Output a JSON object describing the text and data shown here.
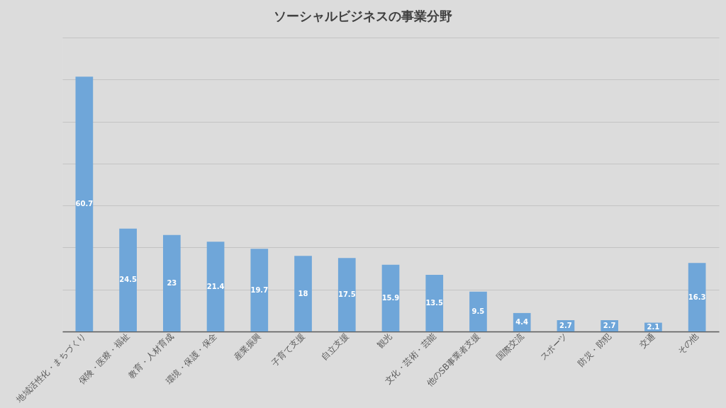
{
  "chart_data": {
    "type": "bar",
    "title": "ソーシャルビジネスの事業分野",
    "categories": [
      "地域活性化・まちづくり",
      "保険・医療・福祉",
      "教育・人材育成",
      "環境・保護・保全",
      "産業振興",
      "子育て支援",
      "自立支援",
      "観光",
      "文化・芸術・芸能",
      "他のSB事業者支援",
      "国際交流",
      "スポーツ",
      "防災・防犯",
      "交通",
      "その他"
    ],
    "values": [
      60.7,
      24.5,
      23,
      21.4,
      19.7,
      18,
      17.5,
      15.9,
      13.5,
      9.5,
      4.4,
      2.7,
      2.7,
      2.1,
      16.3
    ],
    "color": "#6fa6d9",
    "ylim": [
      0,
      70
    ],
    "yticks": [
      {
        "value": 0,
        "label": null
      },
      {
        "value": 10,
        "label": null
      },
      {
        "value": 20,
        "label": null
      },
      {
        "value": 30,
        "label": null
      },
      {
        "value": 40,
        "label": null
      },
      {
        "value": 50,
        "label": null
      },
      {
        "value": 60,
        "label": null
      },
      {
        "value": 70,
        "label": null
      }
    ],
    "grid": "y",
    "tick_labels": "x",
    "data_labels": true
  }
}
